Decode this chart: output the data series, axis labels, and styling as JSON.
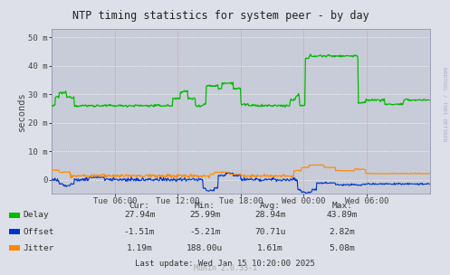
{
  "title": "NTP timing statistics for system peer - by day",
  "ylabel": "seconds",
  "background_color": "#dde0e8",
  "plot_bg_color": "#c8ccd8",
  "grid_color_h": "#ffffff",
  "grid_color_v": "#e08888",
  "delay_color": "#00bb00",
  "offset_color": "#0033cc",
  "jitter_color": "#ff8800",
  "yticks": [
    0,
    10,
    20,
    30,
    40,
    50
  ],
  "ytick_labels": [
    "0",
    "10 m",
    "20 m",
    "30 m",
    "40 m",
    "50 m"
  ],
  "ylim": [
    -5,
    53
  ],
  "xtick_labels": [
    "Tue 06:00",
    "Tue 12:00",
    "Tue 18:00",
    "Wed 00:00",
    "Wed 06:00"
  ],
  "legend_labels": [
    "Delay",
    "Offset",
    "Jitter"
  ],
  "stats_header": [
    "Cur:",
    "Min:",
    "Avg:",
    "Max:"
  ],
  "stats_delay": [
    "27.94m",
    "25.99m",
    "28.94m",
    "43.89m"
  ],
  "stats_offset": [
    "-1.51m",
    "-5.21m",
    "70.71u",
    "2.82m"
  ],
  "stats_jitter": [
    "1.19m",
    "188.00u",
    "1.61m",
    "5.08m"
  ],
  "last_update": "Last update: Wed Jan 15 10:20:00 2025",
  "munin_version": "Munin 2.0.33-1",
  "rrdtool_label": "RRDTOOL / TOBI OETIKER"
}
